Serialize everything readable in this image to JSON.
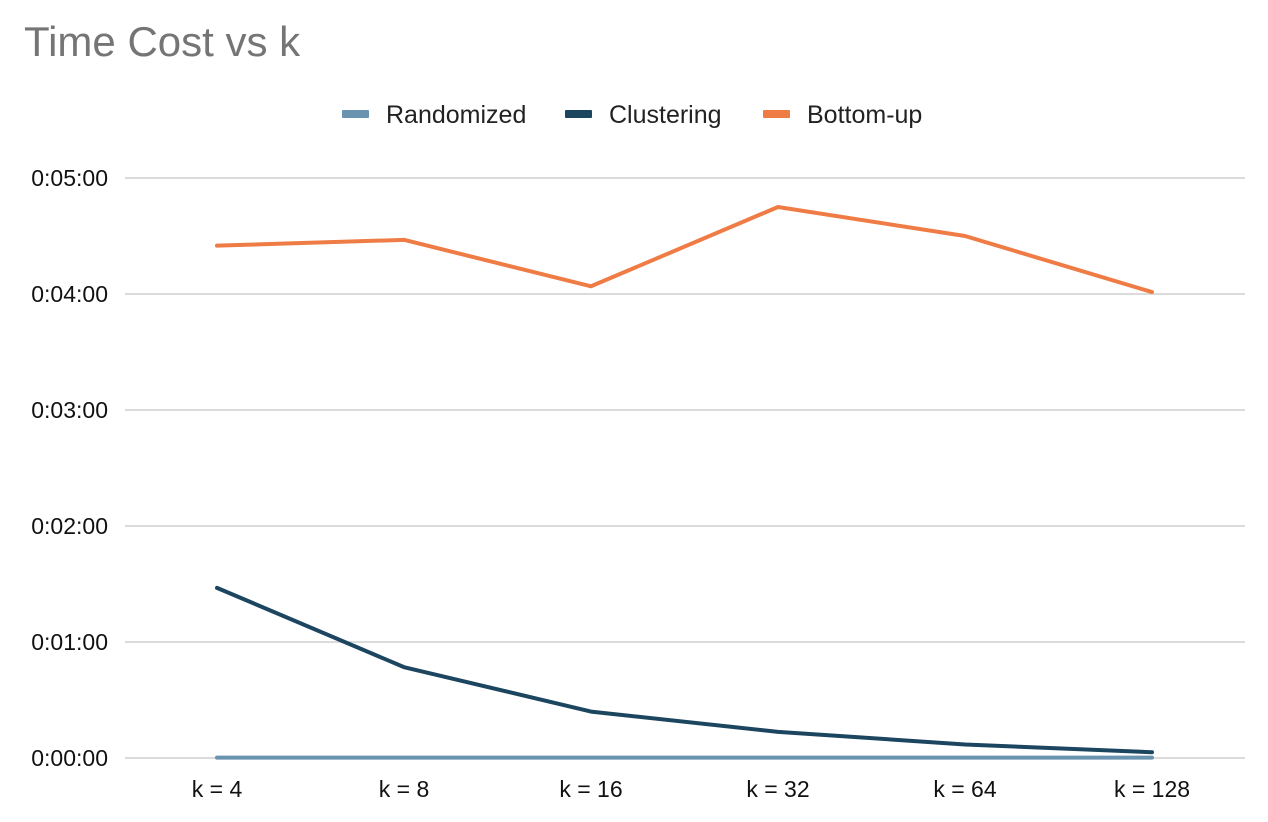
{
  "chart_data": {
    "type": "line",
    "title": "Time Cost vs k",
    "xlabel": "",
    "ylabel": "",
    "categories": [
      "k = 4",
      "k = 8",
      "k = 16",
      "k = 32",
      "k = 64",
      "k = 128"
    ],
    "y_unit": "seconds",
    "ylim": [
      0,
      300
    ],
    "y_ticks": [
      0,
      60,
      120,
      180,
      240,
      300
    ],
    "y_tick_labels": [
      "0:00:00",
      "0:01:00",
      "0:02:00",
      "0:03:00",
      "0:04:00",
      "0:05:00"
    ],
    "grid": true,
    "legend_position": "top-center",
    "series": [
      {
        "name": "Randomized",
        "color": "#6a93b0",
        "values": [
          0.2,
          0.2,
          0.2,
          0.2,
          0.2,
          0.2
        ]
      },
      {
        "name": "Clustering",
        "color": "#1c4560",
        "values": [
          88,
          47,
          24,
          13.5,
          7,
          3
        ]
      },
      {
        "name": "Bottom-up",
        "color": "#ef7c45",
        "values": [
          265,
          268,
          244,
          285,
          270,
          241
        ]
      }
    ]
  }
}
